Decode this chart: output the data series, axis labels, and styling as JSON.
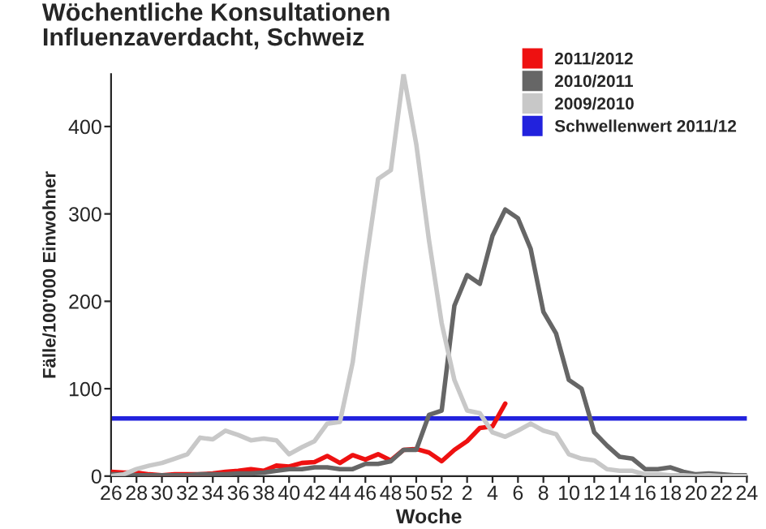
{
  "chart_data": {
    "type": "line",
    "title": "Wöchentliche Konsultationen\nInfluenzaverdacht, Schweiz",
    "xlabel": "Woche",
    "ylabel": "Fälle/100'000 Einwohner",
    "categories": [
      "26",
      null,
      "28",
      null,
      "30",
      null,
      "32",
      null,
      "34",
      null,
      "36",
      null,
      "38",
      null,
      "40",
      null,
      "42",
      null,
      "44",
      null,
      "46",
      null,
      "48",
      null,
      "50",
      null,
      "52",
      null,
      "2",
      null,
      "4",
      null,
      "6",
      null,
      "8",
      null,
      "10",
      null,
      "12",
      null,
      "14",
      null,
      "16",
      null,
      "18",
      null,
      "20",
      null,
      "22",
      null,
      "24"
    ],
    "series": [
      {
        "name": "2011/2012",
        "color": "#ee1111",
        "values": [
          5,
          4,
          4,
          2,
          1,
          2,
          2,
          2,
          3,
          5,
          6,
          8,
          6,
          12,
          11,
          15,
          16,
          23,
          15,
          24,
          19,
          25,
          18,
          30,
          31,
          27,
          17,
          30,
          40,
          55,
          57,
          83,
          null,
          null,
          null,
          null,
          null,
          null,
          null,
          null,
          null,
          null,
          null,
          null,
          null,
          null,
          null,
          null,
          null,
          null,
          null
        ]
      },
      {
        "name": "2010/2011",
        "color": "#666666",
        "values": [
          2,
          2,
          1,
          1,
          1,
          1,
          1,
          2,
          2,
          2,
          3,
          3,
          4,
          6,
          8,
          8,
          10,
          10,
          8,
          8,
          14,
          14,
          17,
          30,
          30,
          70,
          75,
          195,
          230,
          220,
          275,
          305,
          295,
          260,
          188,
          163,
          110,
          100,
          50,
          35,
          22,
          20,
          8,
          8,
          10,
          5,
          2,
          3,
          2,
          1,
          1
        ]
      },
      {
        "name": "2009/2010",
        "color": "#c8c8c8",
        "values": [
          0,
          2,
          8,
          12,
          15,
          20,
          25,
          44,
          42,
          52,
          47,
          41,
          43,
          41,
          25,
          33,
          40,
          60,
          62,
          130,
          240,
          340,
          350,
          460,
          380,
          270,
          175,
          110,
          75,
          72,
          50,
          45,
          52,
          60,
          52,
          48,
          25,
          20,
          18,
          8,
          6,
          6,
          2,
          2,
          1,
          1,
          0,
          1,
          0,
          0,
          0
        ]
      }
    ],
    "ref_lines": [
      {
        "axis": "y",
        "value": 66,
        "label": "Schwellenwert 2011/12",
        "color": "#2222dd"
      }
    ],
    "ylim": [
      0,
      460
    ],
    "yticks": [
      0,
      100,
      200,
      300,
      400
    ],
    "grid": false,
    "legend": "top right",
    "marker": "none",
    "line_style": "solid"
  }
}
